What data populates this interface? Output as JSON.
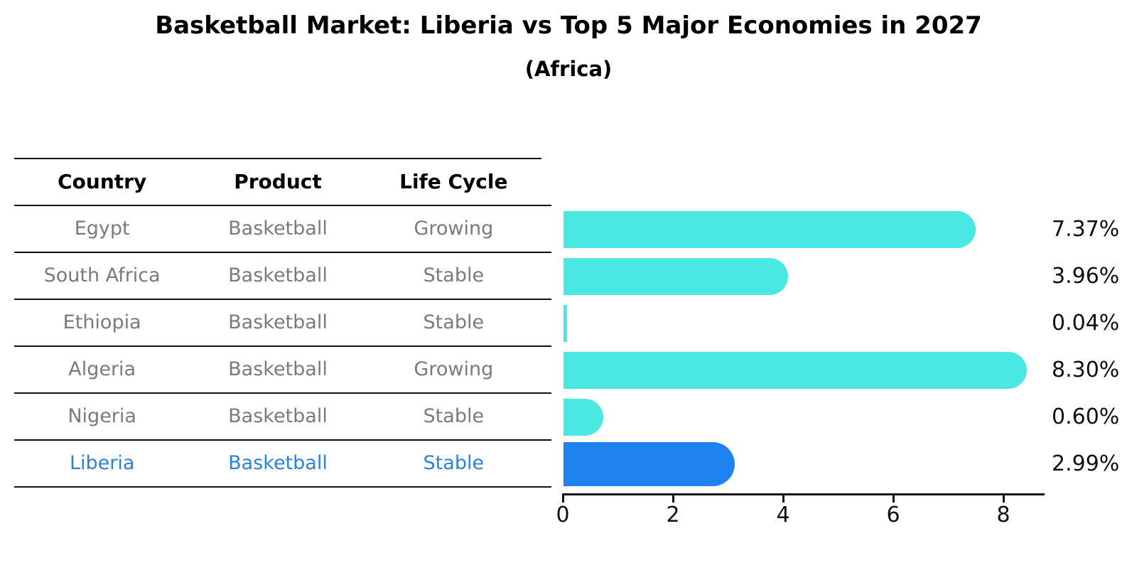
{
  "title": "Basketball Market: Liberia vs Top 5 Major Economies in 2027",
  "subtitle": "(Africa)",
  "colors": {
    "bar": "#4ae8e3",
    "highlight_bar": "#1e82f0",
    "highlight_text": "#2b82d9",
    "row_text": "#7a7a7a",
    "ink": "#111111"
  },
  "table": {
    "headers": [
      "Country",
      "Product",
      "Life Cycle"
    ],
    "rows": [
      {
        "country": "Egypt",
        "product": "Basketball",
        "life_cycle": "Growing",
        "highlight": false
      },
      {
        "country": "South Africa",
        "product": "Basketball",
        "life_cycle": "Stable",
        "highlight": false
      },
      {
        "country": "Ethiopia",
        "product": "Basketball",
        "life_cycle": "Stable",
        "highlight": false
      },
      {
        "country": "Algeria",
        "product": "Basketball",
        "life_cycle": "Growing",
        "highlight": false
      },
      {
        "country": "Nigeria",
        "product": "Basketball",
        "life_cycle": "Stable",
        "highlight": false
      },
      {
        "country": "Liberia",
        "product": "Basketball",
        "life_cycle": "Stable",
        "highlight": true
      }
    ]
  },
  "chart_data": {
    "type": "bar",
    "orientation": "horizontal",
    "title": "Basketball Market: Liberia vs Top 5 Major Economies in 2027 (Africa)",
    "categories": [
      "Egypt",
      "South Africa",
      "Ethiopia",
      "Algeria",
      "Nigeria",
      "Liberia"
    ],
    "values": [
      7.37,
      3.96,
      0.04,
      8.3,
      0.6,
      2.99
    ],
    "value_labels": [
      "7.37%",
      "3.96%",
      "0.04%",
      "8.30%",
      "0.60%",
      "2.99%"
    ],
    "highlight_index": 5,
    "x_ticks": [
      0,
      2,
      4,
      6,
      8
    ],
    "xlim": [
      0,
      8.7
    ],
    "xlabel": "",
    "ylabel": "",
    "grid": false,
    "legend": null
  }
}
